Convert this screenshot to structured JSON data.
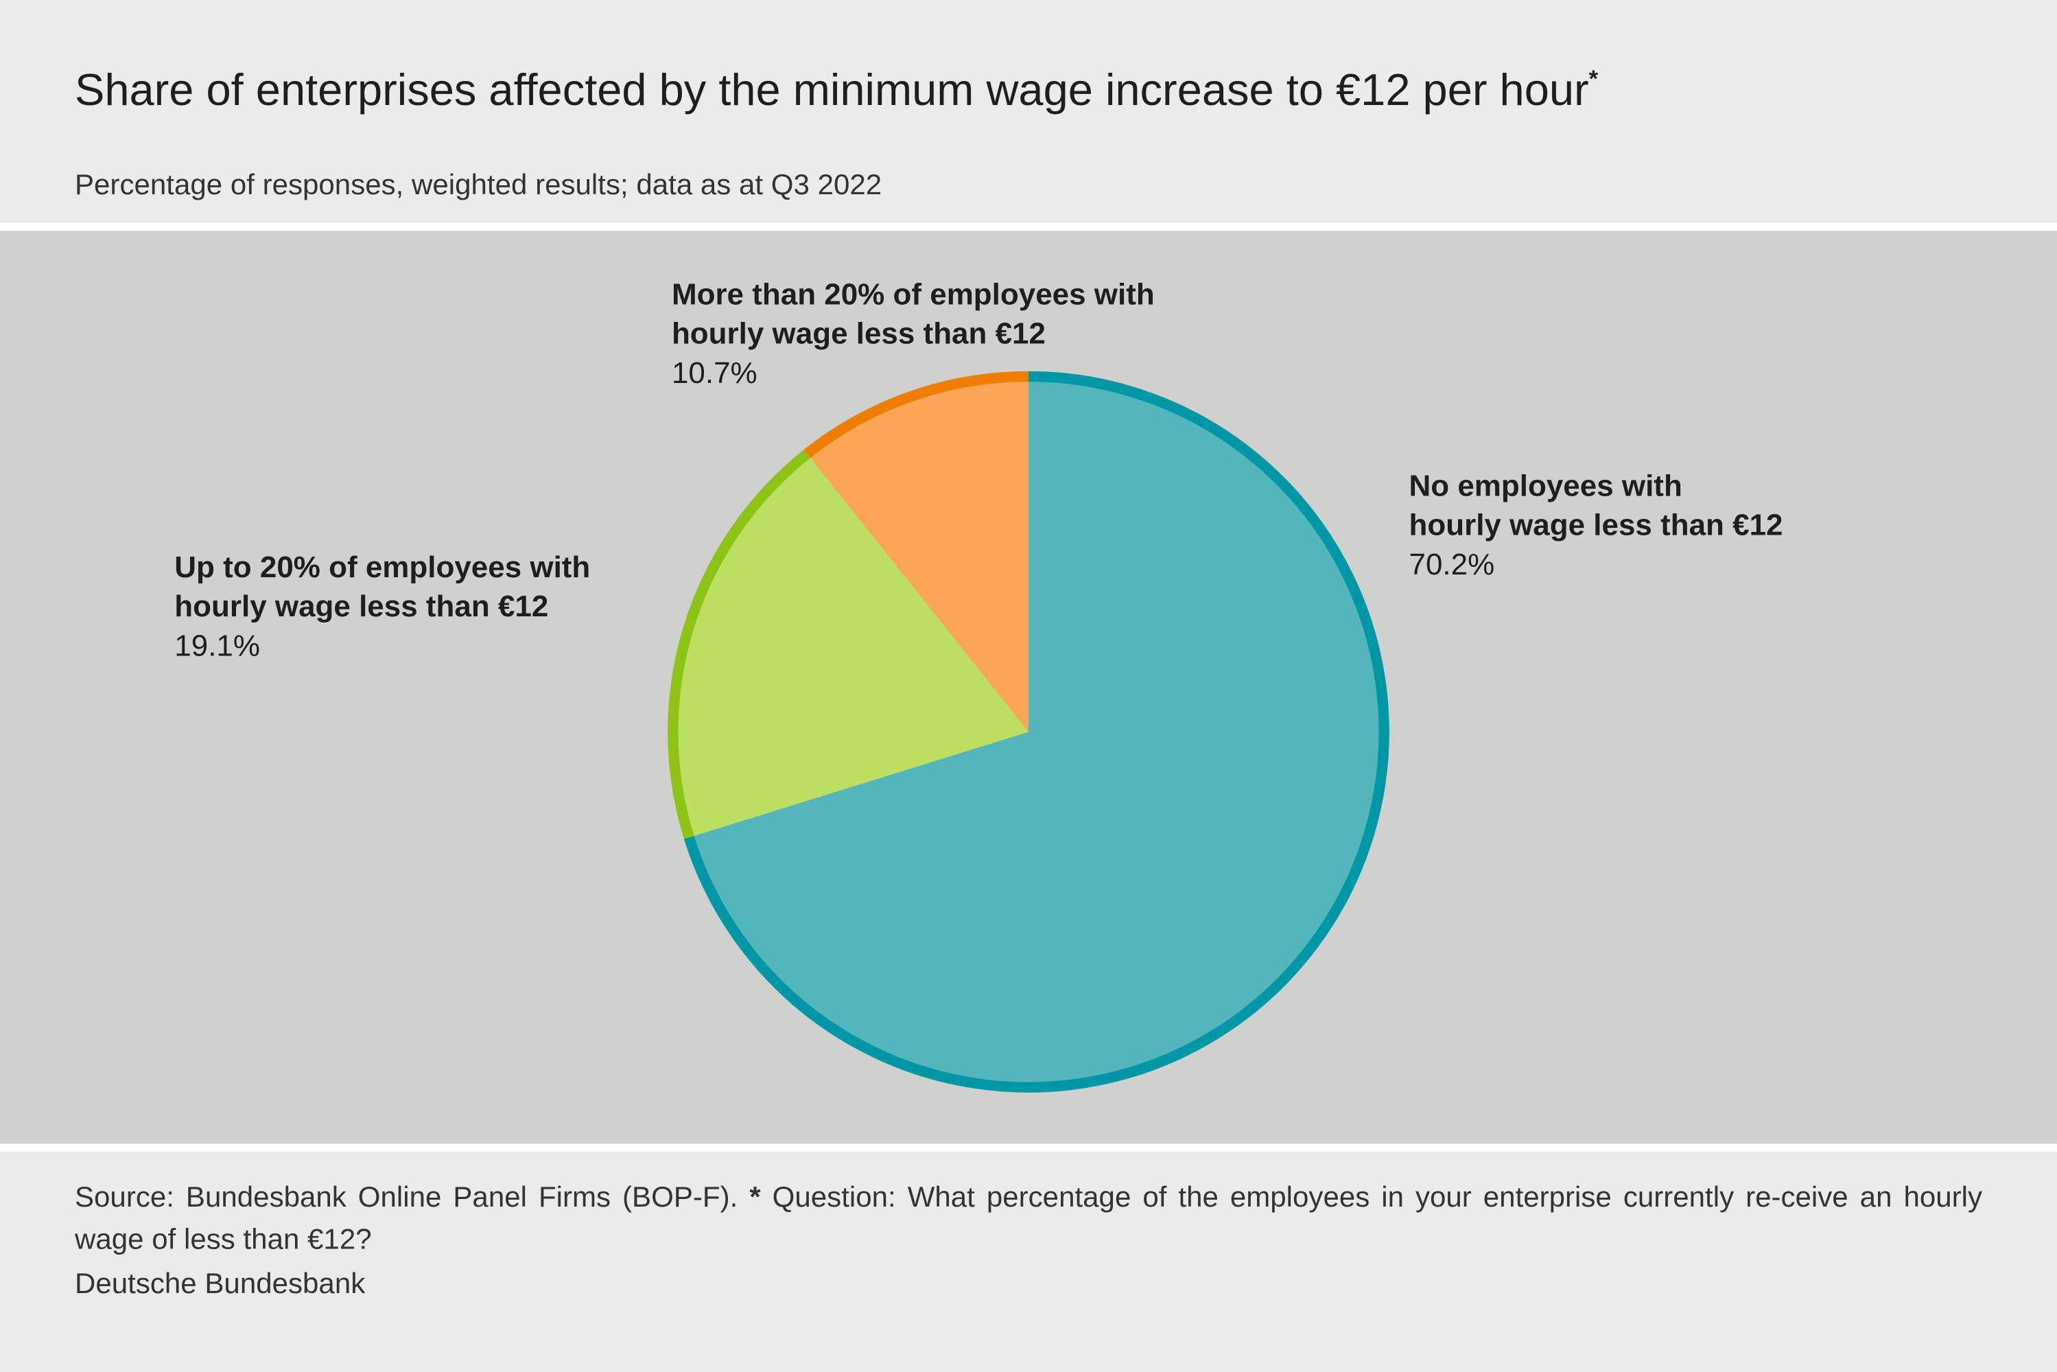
{
  "chart_data": {
    "type": "pie",
    "title": "Share of enterprises affected by the minimum wage increase to €12 per hour",
    "title_marker": "*",
    "subtitle": "Percentage of responses, weighted results; data as at Q3 2022",
    "series": [
      {
        "name": "No employees with\nhourly wage less than €12",
        "color": "#52b6bc",
        "edge_color": "#0097a7",
        "value": 70.2,
        "value_label": "70.2%"
      },
      {
        "name": "Up to 20% of employees with\nhourly wage less than €12",
        "color": "#bcdf62",
        "edge_color": "#8cc314",
        "value": 19.1,
        "value_label": "19.1%"
      },
      {
        "name": "More than 20% of employees with\nhourly wage less than €12",
        "color": "#fba557",
        "edge_color": "#ef7d00",
        "value": 10.7,
        "value_label": "10.7%"
      }
    ],
    "source": "Source: Bundesbank Online Panel Firms (BOP-F).",
    "note_marker": "*",
    "note": "Question: What percentage of the employees in your enterprise currently re-ceive an hourly wage of less than €12?",
    "publisher": "Deutsche Bundesbank"
  }
}
